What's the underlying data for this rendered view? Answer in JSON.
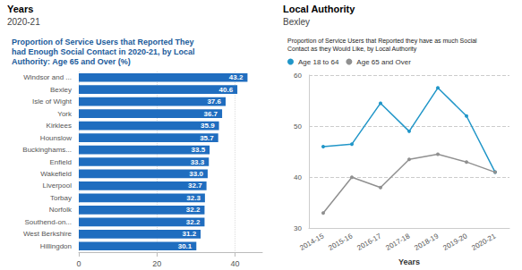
{
  "chart_data": [
    {
      "type": "bar",
      "title": "Proportion of Service Users that Reported They\nhad Enough Social Contact in 2020-21, by Local\nAuthority: Age 65 and Over (%)",
      "annotations": [
        "Years",
        "2020-21"
      ],
      "orientation": "horizontal",
      "categories": [
        "Windsor and ...",
        "Bexley",
        "Isle of Wight",
        "York",
        "Kirklees",
        "Hounslow",
        "Buckinghams...",
        "Enfield",
        "Wakefield",
        "Liverpool",
        "Torbay",
        "Norfolk",
        "Southend-on...",
        "West Berkshire",
        "Hillingdon"
      ],
      "values": [
        43.2,
        40.6,
        37.6,
        36.7,
        35.9,
        35.7,
        33.5,
        33.3,
        33.0,
        32.7,
        32.3,
        32.2,
        32.2,
        31.2,
        30.1
      ],
      "value_labels": [
        "43.2",
        "40.6",
        "37.6",
        "36.7",
        "35.9",
        "35.7",
        "33.5",
        "33.3",
        "33.0",
        "32.7",
        "32.3",
        "32.2",
        "32.2",
        "31.2",
        "30.1"
      ],
      "color": "#1f6dbf",
      "xlim": [
        0,
        47
      ],
      "xticks": [
        0,
        20,
        40
      ],
      "grid": true,
      "data_labels": true
    },
    {
      "type": "line",
      "title": "Proportion of Service Users that Reported they have as much Social\nContact as they Would Like, by Local Authority",
      "annotations": [
        "Local Authority",
        "Bexley"
      ],
      "x_label": "Years",
      "categories": [
        "2014-15",
        "2015-16",
        "2016-17",
        "2017-18",
        "2018-19",
        "2019-20",
        "2020-21"
      ],
      "series": [
        {
          "name": "Age 18 to 64",
          "color": "#2196c8",
          "values": [
            46.0,
            46.5,
            54.5,
            49.0,
            57.5,
            52.0,
            41.0
          ],
          "marker": "circle"
        },
        {
          "name": "Age 65 and Over",
          "color": "#909090",
          "values": [
            33.0,
            40.0,
            38.0,
            43.5,
            44.5,
            43.0,
            41.0
          ],
          "marker": "circle"
        }
      ],
      "ylim": [
        30,
        60
      ],
      "yticks": [
        30,
        40,
        50,
        60
      ],
      "grid": true,
      "legend": "top"
    }
  ]
}
